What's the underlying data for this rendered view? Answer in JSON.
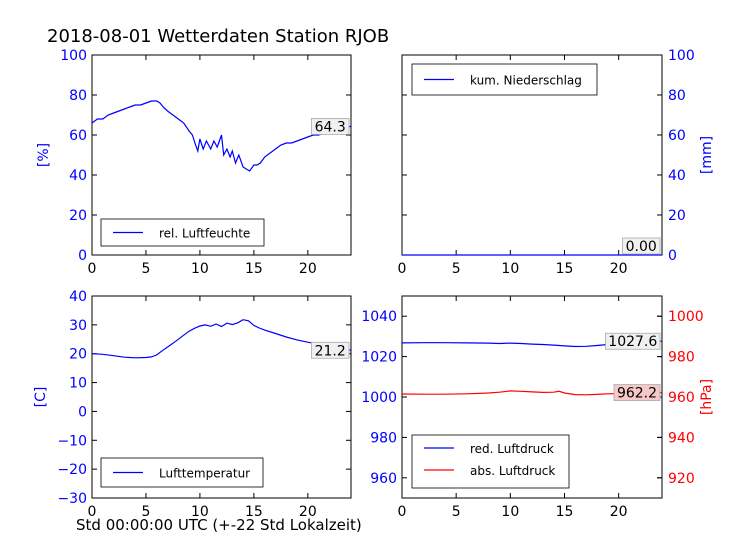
{
  "page": {
    "title": "2018-08-01 Wetterdaten Station RJOB",
    "x_caption": "Std 00:00:00 UTC (+-22 Std Lokalzeit)"
  },
  "colors": {
    "blue": "#0000ff",
    "red": "#ff0000",
    "red_box": "#f7c8c8",
    "gray_box": "#f0f0f0"
  },
  "chart_data": [
    {
      "id": "humidity",
      "type": "line",
      "ylabel": "[%]",
      "ylabel_color": "#0000ff",
      "ylim": [
        0,
        100
      ],
      "yticks": [
        "0",
        "20",
        "40",
        "60",
        "80",
        "100"
      ],
      "yaxis_side": "left",
      "xlim": [
        0,
        24
      ],
      "xticks": [
        "0",
        "5",
        "10",
        "15",
        "20"
      ],
      "legend": "lower-left",
      "series": [
        {
          "name": "rel. Luftfeuchte",
          "color": "#0000ff",
          "x": [
            0,
            0.5,
            1,
            1.5,
            2,
            2.5,
            3,
            3.5,
            4,
            4.5,
            5,
            5.5,
            6,
            6.3,
            6.6,
            7,
            7.5,
            8,
            8.5,
            9,
            9.3,
            9.6,
            9.8,
            10,
            10.3,
            10.6,
            11,
            11.3,
            11.6,
            12,
            12.2,
            12.5,
            12.8,
            13,
            13.3,
            13.6,
            14,
            14.3,
            14.6,
            15,
            15.3,
            15.6,
            16,
            16.5,
            17,
            17.5,
            18,
            18.5,
            19,
            19.5,
            20,
            20.5,
            21,
            21.5,
            22,
            22.5,
            23,
            23.5,
            24
          ],
          "y": [
            66,
            68,
            68,
            70,
            71,
            72,
            73,
            74,
            75,
            75,
            76,
            77,
            77,
            76,
            74,
            72,
            70,
            68,
            66,
            62,
            60,
            55,
            52,
            58,
            53,
            57,
            53,
            57,
            54,
            60,
            50,
            53,
            49,
            52,
            46,
            50,
            44,
            43,
            42,
            45,
            45,
            46,
            49,
            51,
            53,
            55,
            56,
            56,
            57,
            58,
            59,
            60,
            60,
            61,
            62,
            63,
            63,
            64,
            64.3
          ]
        }
      ],
      "annotations": [
        {
          "text": "64.3",
          "value": 64.3,
          "box": "gray"
        }
      ]
    },
    {
      "id": "precip",
      "type": "line",
      "ylabel": "[mm]",
      "ylabel_color": "#0000ff",
      "ylim": [
        0,
        100
      ],
      "yticks": [
        "0",
        "20",
        "40",
        "60",
        "80",
        "100"
      ],
      "yaxis_side": "right",
      "xlim": [
        0,
        24
      ],
      "xticks": [
        "0",
        "5",
        "10",
        "15",
        "20"
      ],
      "legend": "upper-left",
      "series": [
        {
          "name": "kum. Niederschlag",
          "color": "#0000ff",
          "x": [
            0,
            24
          ],
          "y": [
            0,
            0
          ]
        }
      ],
      "annotations": [
        {
          "text": "0.00",
          "value": 0,
          "box": "gray"
        }
      ]
    },
    {
      "id": "temperature",
      "type": "line",
      "ylabel": "[C]",
      "ylabel_color": "#0000ff",
      "ylim": [
        -30,
        40
      ],
      "yticks": [
        "−30",
        "−20",
        "−10",
        "0",
        "10",
        "20",
        "30",
        "40"
      ],
      "yaxis_side": "left",
      "xlim": [
        0,
        24
      ],
      "xticks": [
        "0",
        "5",
        "10",
        "15",
        "20"
      ],
      "legend": "lower-left",
      "series": [
        {
          "name": "Lufttemperatur",
          "color": "#0000ff",
          "x": [
            0,
            1,
            2,
            3,
            4,
            5,
            5.5,
            6,
            6.5,
            7,
            7.5,
            8,
            8.5,
            9,
            9.5,
            10,
            10.5,
            11,
            11.5,
            12,
            12.5,
            13,
            13.5,
            14,
            14.5,
            15,
            15.5,
            16,
            17,
            18,
            19,
            20,
            21,
            22,
            23,
            24
          ],
          "y": [
            20,
            19.8,
            19.3,
            18.8,
            18.6,
            18.7,
            18.9,
            19.6,
            21,
            22.3,
            23.6,
            25,
            26.4,
            27.8,
            28.8,
            29.6,
            30,
            29.5,
            30.3,
            29.4,
            30.6,
            30.1,
            30.7,
            31.8,
            31.4,
            29.8,
            28.9,
            28.2,
            27,
            25.8,
            24.8,
            24,
            23.3,
            22.7,
            22,
            21.2
          ]
        }
      ],
      "annotations": [
        {
          "text": "21.2",
          "value": 21.2,
          "box": "gray"
        }
      ]
    },
    {
      "id": "pressure",
      "type": "line",
      "ylabel": "[hPa]",
      "ylabel_color": "#ff0000",
      "ylim": [
        950,
        1050
      ],
      "yticks": [
        "960",
        "980",
        "1000",
        "1020",
        "1040"
      ],
      "yaxis_side": "left",
      "y2lim": [
        910,
        1010
      ],
      "y2ticks": [
        "920",
        "940",
        "960",
        "980",
        "1000"
      ],
      "xlim": [
        0,
        24
      ],
      "xticks": [
        "0",
        "5",
        "10",
        "15",
        "20"
      ],
      "legend": "lower-left",
      "series": [
        {
          "name": "red. Luftdruck",
          "color": "#0000ff",
          "axis": "left",
          "x": [
            0,
            2,
            4,
            6,
            8,
            9,
            10,
            11,
            12,
            13,
            14,
            15,
            16,
            17,
            18,
            19,
            20,
            21,
            22,
            23,
            24
          ],
          "y": [
            1026.8,
            1026.9,
            1026.9,
            1026.8,
            1026.7,
            1026.5,
            1026.7,
            1026.5,
            1026.2,
            1026,
            1025.7,
            1025.3,
            1025,
            1025.1,
            1025.5,
            1026,
            1026.4,
            1026.8,
            1027,
            1027.3,
            1027.6
          ]
        },
        {
          "name": "abs. Luftdruck",
          "color": "#ff0000",
          "axis": "right",
          "x": [
            0,
            2,
            4,
            6,
            8,
            9,
            10,
            11,
            12,
            13,
            14,
            14.5,
            15,
            16,
            17,
            18,
            19,
            20,
            21,
            22,
            23,
            24
          ],
          "y": [
            961.5,
            961.4,
            961.4,
            961.6,
            962,
            962.4,
            963,
            962.8,
            962.5,
            962.3,
            962.4,
            962.8,
            962,
            961.2,
            961.1,
            961.3,
            961.6,
            961.7,
            961.9,
            962,
            962.1,
            962.2
          ]
        }
      ],
      "annotations": [
        {
          "text": "1027.6",
          "value": 1027.6,
          "box": "gray",
          "axis": "left"
        },
        {
          "text": "962.2",
          "value": 962.2,
          "box": "red",
          "axis": "right"
        }
      ]
    }
  ]
}
